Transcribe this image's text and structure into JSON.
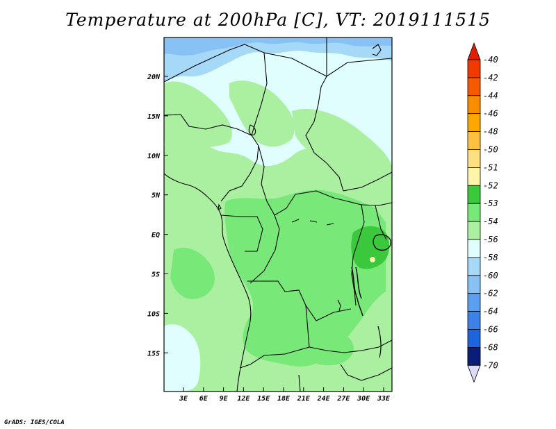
{
  "title": "Temperature at 200hPa [C], VT: 2019111515",
  "credit": "GrADS: IGES/COLA",
  "map": {
    "lat_labels": [
      "20N",
      "15N",
      "10N",
      "5N",
      "EQ",
      "5S",
      "10S",
      "15S"
    ],
    "lon_labels": [
      "3E",
      "6E",
      "9E",
      "12E",
      "15E",
      "18E",
      "21E",
      "24E",
      "27E",
      "30E",
      "33E"
    ],
    "fill_colors": {
      "land_base": "#aaf0a0",
      "pale_cyan": "#e0fefe",
      "light_blue": "#a6d8f8",
      "blue": "#88c2f4",
      "green_53": "#78e878",
      "green_52": "#3cc83c",
      "yellow_51": "#fff5aa"
    }
  },
  "colorbar": {
    "levels": [
      {
        "label": "-40",
        "color": "#f03a00"
      },
      {
        "label": "-42",
        "color": "#f55a00"
      },
      {
        "label": "-44",
        "color": "#fa8c00"
      },
      {
        "label": "-46",
        "color": "#fca800"
      },
      {
        "label": "-48",
        "color": "#fec040"
      },
      {
        "label": "-50",
        "color": "#fee080"
      },
      {
        "label": "-51",
        "color": "#fff5aa"
      },
      {
        "label": "-52",
        "color": "#3cc83c"
      },
      {
        "label": "-53",
        "color": "#78e878"
      },
      {
        "label": "-54",
        "color": "#aaf0a0"
      },
      {
        "label": "-56",
        "color": "#e0fefe"
      },
      {
        "label": "-58",
        "color": "#a6d8f8"
      },
      {
        "label": "-60",
        "color": "#88c2f4"
      },
      {
        "label": "-62",
        "color": "#5aa0ee"
      },
      {
        "label": "-64",
        "color": "#3c82e6"
      },
      {
        "label": "-66",
        "color": "#1e64dc"
      },
      {
        "label": "-68",
        "color": "#0a46b4"
      },
      {
        "label": "-70",
        "color": "#0a1e78"
      }
    ],
    "top_cap_color": "#e01e00",
    "bottom_cap_color": "#dcdcfa"
  }
}
